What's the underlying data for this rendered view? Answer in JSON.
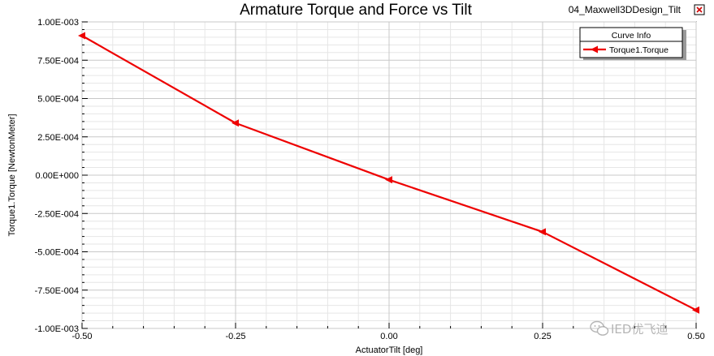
{
  "chart_data": {
    "type": "line",
    "title": "Armature Torque and Force vs Tilt",
    "xlabel": "ActuatorTilt [deg]",
    "ylabel": "Torque1.Torque [NewtonMeter]",
    "xlim": [
      -0.5,
      0.5
    ],
    "ylim": [
      -0.001,
      0.001
    ],
    "x_ticks": [
      -0.5,
      -0.25,
      0.0,
      0.25,
      0.5
    ],
    "x_tick_labels": [
      "-0.50",
      "-0.25",
      "0.00",
      "0.25",
      "0.50"
    ],
    "y_ticks": [
      -0.001,
      -0.00075,
      -0.0005,
      -0.00025,
      0.0,
      0.00025,
      0.0005,
      0.00075,
      0.001
    ],
    "y_tick_labels": [
      "-1.00E-003",
      "-7.50E-004",
      "-5.00E-004",
      "-2.50E-004",
      "0.00E+000",
      "2.50E-004",
      "5.00E-004",
      "7.50E-004",
      "1.00E-003"
    ],
    "grid": true,
    "legend": {
      "title": "Curve Info",
      "position": "top-right"
    },
    "series": [
      {
        "name": "Torque1.Torque",
        "color": "#ee0000",
        "x": [
          -0.5,
          -0.25,
          0.0,
          0.25,
          0.5
        ],
        "y": [
          0.00091,
          0.00034,
          -3e-05,
          -0.00037,
          -0.00088
        ]
      }
    ]
  },
  "design_name": "04_Maxwell3DDesign_Tilt",
  "close_icon": "close-x-icon",
  "watermark": {
    "icon": "wechat-icon",
    "text": "IED优飞迪"
  }
}
